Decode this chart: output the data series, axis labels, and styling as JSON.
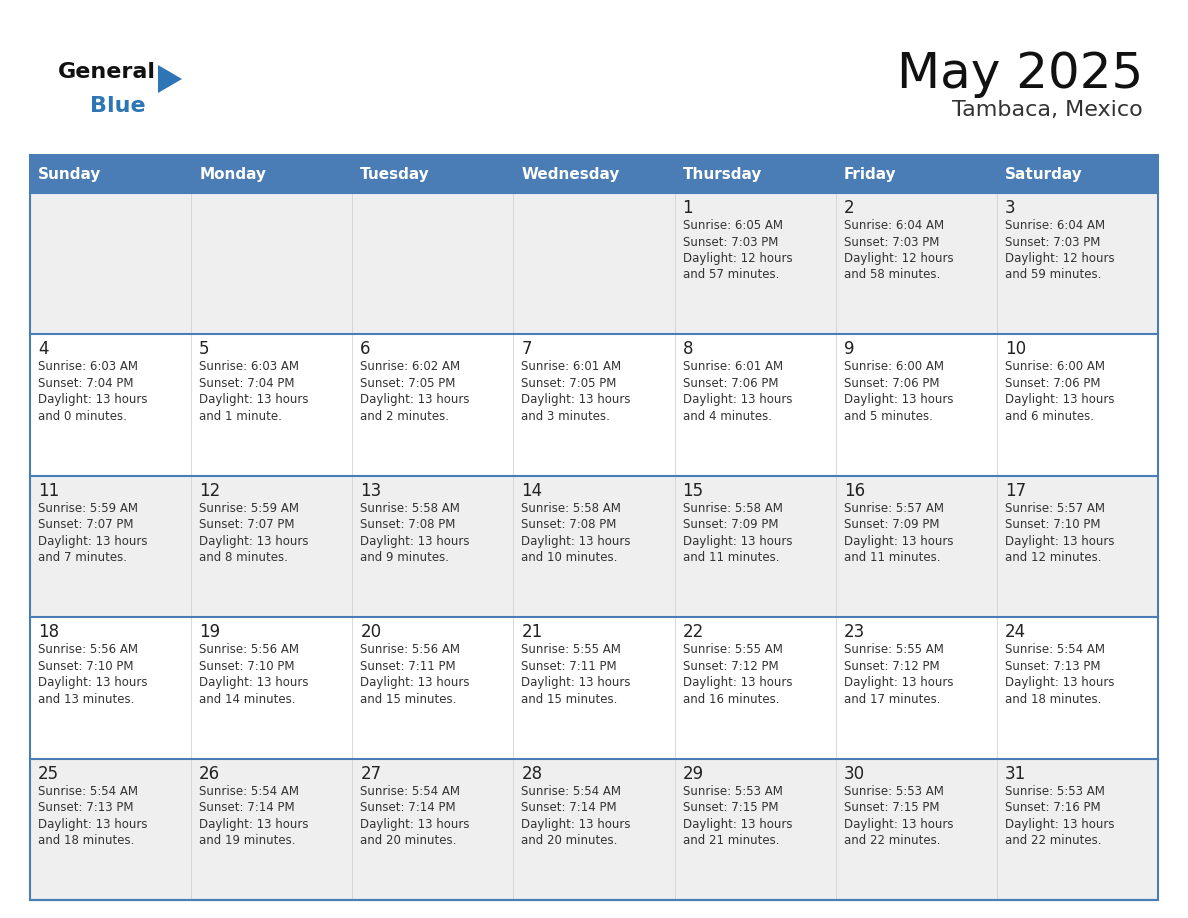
{
  "title": "May 2025",
  "subtitle": "Tambaca, Mexico",
  "days_of_week": [
    "Sunday",
    "Monday",
    "Tuesday",
    "Wednesday",
    "Thursday",
    "Friday",
    "Saturday"
  ],
  "header_bg": "#4A7DB5",
  "header_text": "#FFFFFF",
  "row_bg_odd": "#EFEFEF",
  "row_bg_even": "#FFFFFF",
  "cell_border": "#4A7DB5",
  "day_num_color": "#222222",
  "info_color": "#333333",
  "title_color": "#111111",
  "subtitle_color": "#333333",
  "logo_general_color": "#111111",
  "logo_blue_color": "#2E75B6",
  "calendar": [
    [
      {
        "day": null,
        "info": ""
      },
      {
        "day": null,
        "info": ""
      },
      {
        "day": null,
        "info": ""
      },
      {
        "day": null,
        "info": ""
      },
      {
        "day": 1,
        "info": "Sunrise: 6:05 AM\nSunset: 7:03 PM\nDaylight: 12 hours\nand 57 minutes."
      },
      {
        "day": 2,
        "info": "Sunrise: 6:04 AM\nSunset: 7:03 PM\nDaylight: 12 hours\nand 58 minutes."
      },
      {
        "day": 3,
        "info": "Sunrise: 6:04 AM\nSunset: 7:03 PM\nDaylight: 12 hours\nand 59 minutes."
      }
    ],
    [
      {
        "day": 4,
        "info": "Sunrise: 6:03 AM\nSunset: 7:04 PM\nDaylight: 13 hours\nand 0 minutes."
      },
      {
        "day": 5,
        "info": "Sunrise: 6:03 AM\nSunset: 7:04 PM\nDaylight: 13 hours\nand 1 minute."
      },
      {
        "day": 6,
        "info": "Sunrise: 6:02 AM\nSunset: 7:05 PM\nDaylight: 13 hours\nand 2 minutes."
      },
      {
        "day": 7,
        "info": "Sunrise: 6:01 AM\nSunset: 7:05 PM\nDaylight: 13 hours\nand 3 minutes."
      },
      {
        "day": 8,
        "info": "Sunrise: 6:01 AM\nSunset: 7:06 PM\nDaylight: 13 hours\nand 4 minutes."
      },
      {
        "day": 9,
        "info": "Sunrise: 6:00 AM\nSunset: 7:06 PM\nDaylight: 13 hours\nand 5 minutes."
      },
      {
        "day": 10,
        "info": "Sunrise: 6:00 AM\nSunset: 7:06 PM\nDaylight: 13 hours\nand 6 minutes."
      }
    ],
    [
      {
        "day": 11,
        "info": "Sunrise: 5:59 AM\nSunset: 7:07 PM\nDaylight: 13 hours\nand 7 minutes."
      },
      {
        "day": 12,
        "info": "Sunrise: 5:59 AM\nSunset: 7:07 PM\nDaylight: 13 hours\nand 8 minutes."
      },
      {
        "day": 13,
        "info": "Sunrise: 5:58 AM\nSunset: 7:08 PM\nDaylight: 13 hours\nand 9 minutes."
      },
      {
        "day": 14,
        "info": "Sunrise: 5:58 AM\nSunset: 7:08 PM\nDaylight: 13 hours\nand 10 minutes."
      },
      {
        "day": 15,
        "info": "Sunrise: 5:58 AM\nSunset: 7:09 PM\nDaylight: 13 hours\nand 11 minutes."
      },
      {
        "day": 16,
        "info": "Sunrise: 5:57 AM\nSunset: 7:09 PM\nDaylight: 13 hours\nand 11 minutes."
      },
      {
        "day": 17,
        "info": "Sunrise: 5:57 AM\nSunset: 7:10 PM\nDaylight: 13 hours\nand 12 minutes."
      }
    ],
    [
      {
        "day": 18,
        "info": "Sunrise: 5:56 AM\nSunset: 7:10 PM\nDaylight: 13 hours\nand 13 minutes."
      },
      {
        "day": 19,
        "info": "Sunrise: 5:56 AM\nSunset: 7:10 PM\nDaylight: 13 hours\nand 14 minutes."
      },
      {
        "day": 20,
        "info": "Sunrise: 5:56 AM\nSunset: 7:11 PM\nDaylight: 13 hours\nand 15 minutes."
      },
      {
        "day": 21,
        "info": "Sunrise: 5:55 AM\nSunset: 7:11 PM\nDaylight: 13 hours\nand 15 minutes."
      },
      {
        "day": 22,
        "info": "Sunrise: 5:55 AM\nSunset: 7:12 PM\nDaylight: 13 hours\nand 16 minutes."
      },
      {
        "day": 23,
        "info": "Sunrise: 5:55 AM\nSunset: 7:12 PM\nDaylight: 13 hours\nand 17 minutes."
      },
      {
        "day": 24,
        "info": "Sunrise: 5:54 AM\nSunset: 7:13 PM\nDaylight: 13 hours\nand 18 minutes."
      }
    ],
    [
      {
        "day": 25,
        "info": "Sunrise: 5:54 AM\nSunset: 7:13 PM\nDaylight: 13 hours\nand 18 minutes."
      },
      {
        "day": 26,
        "info": "Sunrise: 5:54 AM\nSunset: 7:14 PM\nDaylight: 13 hours\nand 19 minutes."
      },
      {
        "day": 27,
        "info": "Sunrise: 5:54 AM\nSunset: 7:14 PM\nDaylight: 13 hours\nand 20 minutes."
      },
      {
        "day": 28,
        "info": "Sunrise: 5:54 AM\nSunset: 7:14 PM\nDaylight: 13 hours\nand 20 minutes."
      },
      {
        "day": 29,
        "info": "Sunrise: 5:53 AM\nSunset: 7:15 PM\nDaylight: 13 hours\nand 21 minutes."
      },
      {
        "day": 30,
        "info": "Sunrise: 5:53 AM\nSunset: 7:15 PM\nDaylight: 13 hours\nand 22 minutes."
      },
      {
        "day": 31,
        "info": "Sunrise: 5:53 AM\nSunset: 7:16 PM\nDaylight: 13 hours\nand 22 minutes."
      }
    ]
  ]
}
